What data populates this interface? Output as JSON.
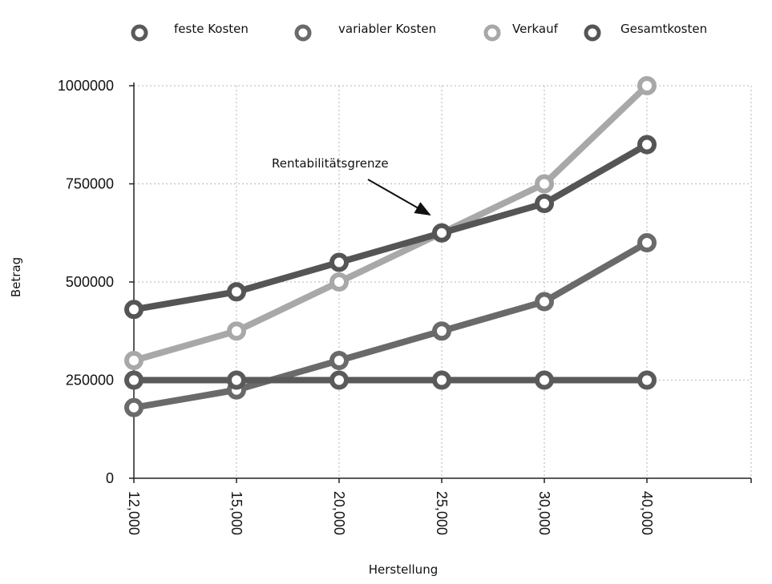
{
  "chart_data": {
    "type": "line",
    "title": "",
    "xlabel": "Herstellung",
    "ylabel": "Betrag",
    "categories": [
      "12,000",
      "15,000",
      "20,000",
      "25,000",
      "30,000",
      "40,000"
    ],
    "y_ticks": [
      0,
      250000,
      500000,
      750000,
      1000000
    ],
    "y_tick_labels": [
      "0",
      "250000",
      "500000",
      "750000",
      "1000000"
    ],
    "ylim": [
      0,
      1000000
    ],
    "grid": true,
    "legend_position": "top",
    "series": [
      {
        "name": "feste Kosten",
        "color": "#5a5a5a",
        "values": [
          250000,
          250000,
          250000,
          250000,
          250000,
          250000
        ]
      },
      {
        "name": "variabler Kosten",
        "color": "#6a6a6a",
        "values": [
          180000,
          225000,
          300000,
          375000,
          450000,
          600000
        ]
      },
      {
        "name": "Verkauf",
        "color": "#a8a8a8",
        "values": [
          300000,
          375000,
          500000,
          625000,
          750000,
          1000000
        ]
      },
      {
        "name": "Gesamtkosten",
        "color": "#555555",
        "values": [
          430000,
          475000,
          550000,
          625000,
          700000,
          850000
        ]
      }
    ],
    "annotations": [
      {
        "text": "Rentabilitätsgrenze",
        "points_to": {
          "category": "25,000",
          "value": 625000
        }
      }
    ]
  }
}
